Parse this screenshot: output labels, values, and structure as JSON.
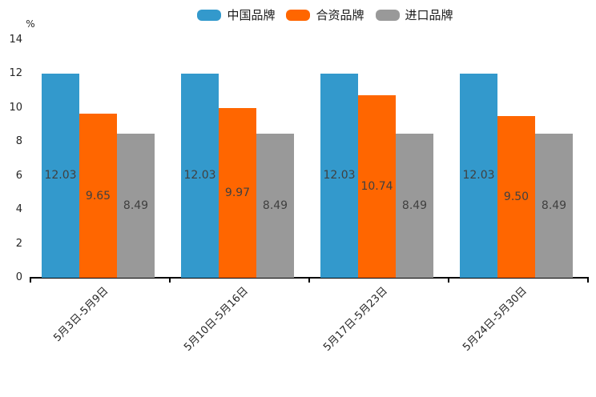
{
  "chart_data": {
    "type": "bar",
    "title": "",
    "xlabel": "",
    "ylabel": "%",
    "ylim": [
      0,
      14
    ],
    "y_ticks": [
      0,
      2,
      4,
      6,
      8,
      10,
      12,
      14
    ],
    "grid": false,
    "legend_position": "top-center",
    "bar_value_labels": true,
    "x_tick_label_rotation_deg": 45,
    "categories": [
      "5月3日-5月9日",
      "5月10日-5月16日",
      "5月17日-5月23日",
      "5月24日-5月30日"
    ],
    "series": [
      {
        "id": "china",
        "name": "中国品牌",
        "color": "#3399CC",
        "values": [
          12.03,
          12.03,
          12.03,
          12.03
        ],
        "labels": [
          "12.03",
          "12.03",
          "12.03",
          "12.03"
        ]
      },
      {
        "id": "joint-venture",
        "name": "合资品牌",
        "color": "#FF6600",
        "values": [
          9.65,
          9.97,
          10.74,
          9.5
        ],
        "labels": [
          "9.65",
          "9.97",
          "10.74",
          "9.50"
        ]
      },
      {
        "id": "import",
        "name": "进口品牌",
        "color": "#999999",
        "values": [
          8.49,
          8.49,
          8.49,
          8.49
        ],
        "labels": [
          "8.49",
          "8.49",
          "8.49",
          "8.49"
        ]
      }
    ],
    "axis_color": "#000000",
    "bar_label_color": "#404040",
    "tick_label_color": "#262626"
  }
}
